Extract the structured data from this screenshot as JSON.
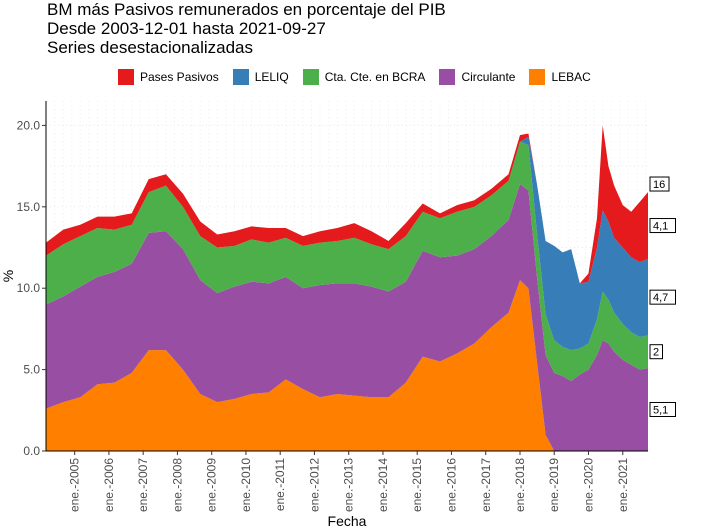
{
  "chart_data": {
    "type": "area",
    "stacked": true,
    "title": [
      "BM más Pasivos remunerados en porcentaje del PIB",
      "Desde 2003-12-01 hasta 2021-09-27",
      "Series desestacionalizadas"
    ],
    "xlabel": "Fecha",
    "ylabel": "%",
    "ylim": [
      0,
      21.5
    ],
    "xlim": [
      "2004-03-01",
      "2021-09-27"
    ],
    "yticks": [
      0,
      5,
      10,
      15,
      20
    ],
    "ytick_labels": [
      "0.0",
      "5.0",
      "10.0",
      "15.0",
      "20.0"
    ],
    "xticks": [
      "2005-01-01",
      "2006-01-01",
      "2007-01-01",
      "2008-01-01",
      "2009-01-01",
      "2010-01-01",
      "2011-01-01",
      "2012-01-01",
      "2013-01-01",
      "2014-01-01",
      "2015-01-01",
      "2016-01-01",
      "2017-01-01",
      "2018-01-01",
      "2019-01-01",
      "2020-01-01",
      "2021-01-01"
    ],
    "xtick_labels": [
      "ene.-2005",
      "ene.-2006",
      "ene.-2007",
      "ene.-2008",
      "ene.-2009",
      "ene.-2010",
      "ene.-2011",
      "ene.-2012",
      "ene.-2013",
      "ene.-2014",
      "ene.-2015",
      "ene.-2016",
      "ene.-2017",
      "ene.-2018",
      "ene.-2019",
      "ene.-2020",
      "ene.-2021"
    ],
    "grid": true,
    "legend_position": "top",
    "series_order_bottom_to_top": [
      "LEBAC",
      "Circulante",
      "Cta. Cte. en BCRA",
      "LELIQ",
      "Pases Pasivos"
    ],
    "legend_order": [
      "Pases Pasivos",
      "LELIQ",
      "Cta. Cte. en BCRA",
      "Circulante",
      "LEBAC"
    ],
    "colors": {
      "Pases Pasivos": "#E41A1C",
      "LELIQ": "#377EB8",
      "Cta. Cte. en BCRA": "#4DAF4A",
      "Circulante": "#984EA3",
      "LEBAC": "#FF7F00"
    },
    "x": [
      "2004-03-01",
      "2004-09-01",
      "2005-03-01",
      "2005-09-01",
      "2006-03-01",
      "2006-09-01",
      "2007-03-01",
      "2007-09-01",
      "2008-03-01",
      "2008-09-01",
      "2009-03-01",
      "2009-09-01",
      "2010-03-01",
      "2010-09-01",
      "2011-03-01",
      "2011-09-01",
      "2012-03-01",
      "2012-09-01",
      "2013-03-01",
      "2013-09-01",
      "2014-03-01",
      "2014-09-01",
      "2015-03-01",
      "2015-09-01",
      "2016-03-01",
      "2016-09-01",
      "2017-03-01",
      "2017-09-01",
      "2018-01-01",
      "2018-04-01",
      "2018-07-01",
      "2018-10-01",
      "2019-01-01",
      "2019-04-01",
      "2019-07-01",
      "2019-10-01",
      "2020-01-01",
      "2020-04-01",
      "2020-06-01",
      "2020-08-01",
      "2020-10-01",
      "2021-01-01",
      "2021-04-01",
      "2021-07-01",
      "2021-09-27"
    ],
    "series": [
      {
        "name": "LEBAC",
        "values": [
          2.6,
          3.0,
          3.3,
          4.1,
          4.2,
          4.8,
          6.2,
          6.2,
          5.0,
          3.5,
          3.0,
          3.2,
          3.5,
          3.6,
          4.4,
          3.8,
          3.3,
          3.5,
          3.4,
          3.3,
          3.3,
          4.2,
          5.8,
          5.5,
          6.0,
          6.6,
          7.6,
          8.5,
          10.5,
          10.0,
          5.5,
          1.0,
          0,
          0,
          0,
          0,
          0,
          0,
          0,
          0,
          0,
          0,
          0,
          0,
          0
        ]
      },
      {
        "name": "Circulante",
        "values": [
          6.4,
          6.5,
          6.8,
          6.6,
          6.8,
          6.7,
          7.2,
          7.3,
          7.4,
          7.0,
          6.7,
          6.9,
          6.9,
          6.7,
          6.3,
          6.2,
          6.9,
          6.8,
          6.9,
          6.8,
          6.5,
          6.2,
          6.5,
          6.4,
          6.0,
          5.8,
          5.6,
          5.7,
          5.9,
          6.0,
          5.2,
          4.9,
          4.8,
          4.6,
          4.3,
          4.7,
          5.0,
          5.9,
          6.8,
          6.6,
          6.1,
          5.6,
          5.3,
          5.0,
          5.1
        ]
      },
      {
        "name": "Cta. Cte. en BCRA",
        "values": [
          3.0,
          3.2,
          3.1,
          3.0,
          2.6,
          2.4,
          2.5,
          2.8,
          2.6,
          2.7,
          2.8,
          2.5,
          2.6,
          2.5,
          2.4,
          2.6,
          2.6,
          2.6,
          2.8,
          2.6,
          2.6,
          2.8,
          2.4,
          2.4,
          2.7,
          2.6,
          2.5,
          2.4,
          2.6,
          2.8,
          2.7,
          2.5,
          2.0,
          1.8,
          1.9,
          1.6,
          1.6,
          2.2,
          3.0,
          2.7,
          2.4,
          2.2,
          2.0,
          2.0,
          2.0
        ]
      },
      {
        "name": "LELIQ",
        "values": [
          0,
          0,
          0,
          0,
          0,
          0,
          0,
          0,
          0,
          0,
          0,
          0,
          0,
          0,
          0,
          0,
          0,
          0,
          0,
          0,
          0,
          0,
          0,
          0,
          0,
          0,
          0,
          0,
          0,
          0.5,
          3.0,
          4.5,
          5.8,
          5.8,
          6.2,
          4.0,
          3.8,
          4.4,
          5.0,
          4.8,
          4.6,
          4.7,
          4.6,
          4.6,
          4.7
        ]
      },
      {
        "name": "Pases Pasivos",
        "values": [
          0.8,
          0.9,
          0.7,
          0.7,
          0.8,
          0.7,
          0.8,
          0.7,
          0.8,
          0.9,
          0.8,
          0.9,
          0.8,
          0.9,
          0.6,
          0.6,
          0.7,
          0.8,
          0.9,
          0.8,
          0.5,
          0.8,
          0.5,
          0.3,
          0.4,
          0.4,
          0.4,
          0.4,
          0.4,
          0.2,
          0,
          0,
          0,
          0,
          0,
          0,
          0.5,
          1.8,
          5.2,
          3.4,
          3.2,
          2.6,
          2.8,
          3.7,
          4.1
        ]
      }
    ],
    "end_labels": [
      {
        "series": "Pases Pasivos",
        "text": "4,1"
      },
      {
        "series": "LELIQ",
        "text": "4,7"
      },
      {
        "series": "Cta. Cte. en BCRA",
        "text": "2"
      },
      {
        "series": "Circulante",
        "text": "5,1"
      },
      {
        "series": "Total",
        "text": "16"
      }
    ]
  }
}
